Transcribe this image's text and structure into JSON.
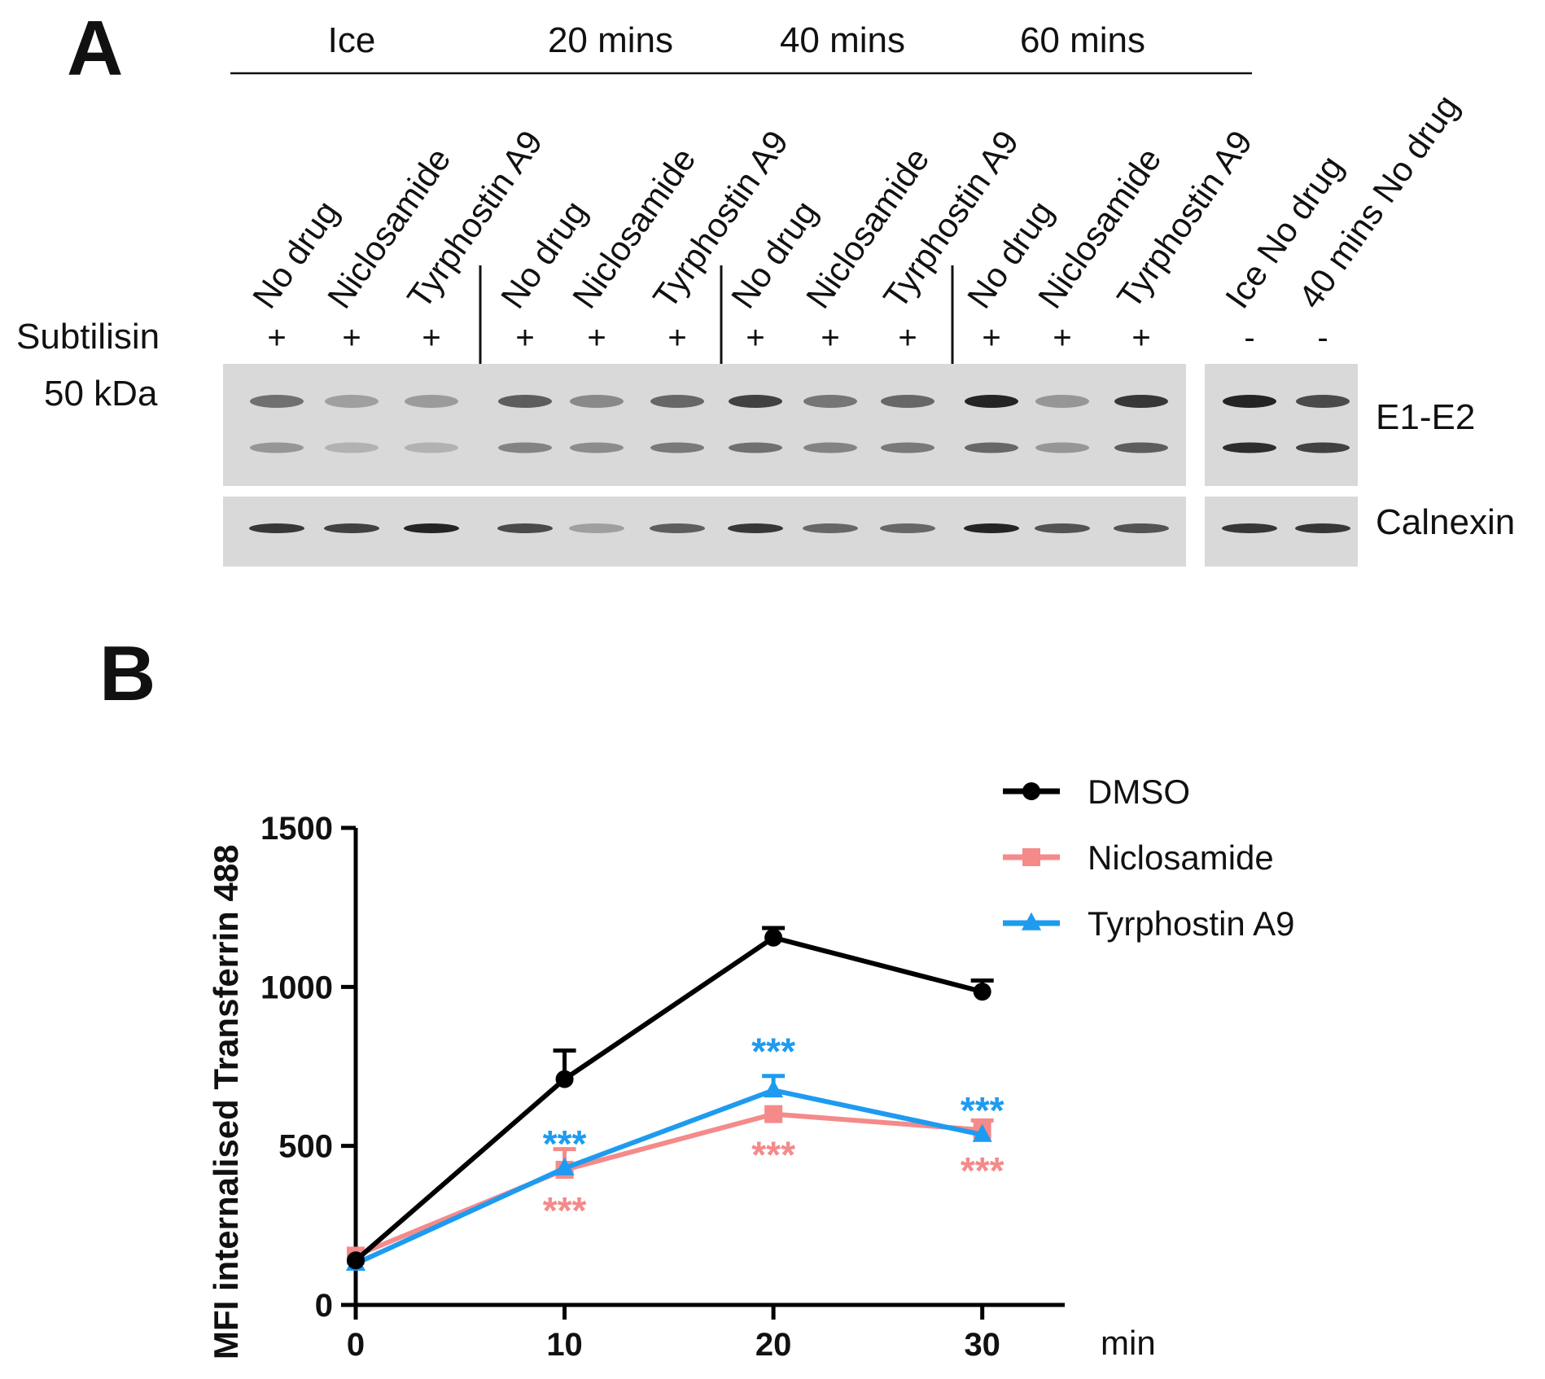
{
  "panel_a": {
    "label": "A",
    "time_groups": [
      "Ice",
      "20 mins",
      "40 mins",
      "60 mins"
    ],
    "lanes": [
      "No drug",
      "Niclosamide",
      "Tyrphostin A9",
      "No drug",
      "Niclosamide",
      "Tyrphostin A9",
      "No drug",
      "Niclosamide",
      "Tyrphostin A9",
      "No drug",
      "Niclosamide",
      "Tyrphostin A9",
      "Ice No drug",
      "40 mins No drug"
    ],
    "subtilisin_label": "Subtilisin",
    "subtilisin_signs": [
      "+",
      "+",
      "+",
      "+",
      "+",
      "+",
      "+",
      "+",
      "+",
      "+",
      "+",
      "+",
      "-",
      "-"
    ],
    "marker_label": "50 kDa",
    "band_labels": [
      "E1-E2",
      "Calnexin"
    ],
    "band_colors": {
      "blot_bg": "#d9d9d9",
      "band": "#1a1a1a"
    },
    "e1e2_upper_intensity": [
      0.55,
      0.3,
      0.32,
      0.65,
      0.42,
      0.6,
      0.8,
      0.52,
      0.6,
      0.95,
      0.35,
      0.85,
      0.95,
      0.75
    ],
    "e1e2_lower_intensity": [
      0.35,
      0.2,
      0.2,
      0.45,
      0.4,
      0.5,
      0.55,
      0.45,
      0.5,
      0.6,
      0.35,
      0.65,
      0.9,
      0.8
    ],
    "calnexin_intensity": [
      0.85,
      0.8,
      0.95,
      0.75,
      0.3,
      0.65,
      0.85,
      0.6,
      0.6,
      0.95,
      0.7,
      0.7,
      0.85,
      0.85
    ]
  },
  "panel_b": {
    "label": "B"
  },
  "chart_data": {
    "type": "line",
    "title": "",
    "xlabel": "min",
    "ylabel": "MFI internalised Transferrin 488",
    "x": [
      0,
      10,
      20,
      30
    ],
    "xlim": [
      0,
      32
    ],
    "ylim": [
      0,
      1500
    ],
    "yticks": [
      0,
      500,
      1000,
      1500
    ],
    "xticks": [
      0,
      10,
      20,
      30
    ],
    "grid": false,
    "legend_position": "top-right",
    "series": [
      {
        "name": "DMSO",
        "values": [
          140,
          710,
          1155,
          985
        ],
        "errors": [
          0,
          90,
          30,
          35
        ],
        "color": "#000000",
        "marker": "circle"
      },
      {
        "name": "Niclosamide",
        "values": [
          155,
          425,
          600,
          550
        ],
        "errors": [
          0,
          65,
          0,
          30
        ],
        "color": "#f48a8a",
        "marker": "square"
      },
      {
        "name": "Tyrphostin A9",
        "values": [
          130,
          430,
          675,
          535
        ],
        "errors": [
          0,
          0,
          45,
          0
        ],
        "color": "#1e9bf0",
        "marker": "triangle"
      }
    ],
    "annotations": [
      {
        "text": "***",
        "x": 10,
        "series": "Tyrphostin A9",
        "position": "above"
      },
      {
        "text": "***",
        "x": 10,
        "series": "Niclosamide",
        "position": "below"
      },
      {
        "text": "***",
        "x": 20,
        "series": "Tyrphostin A9",
        "position": "above"
      },
      {
        "text": "***",
        "x": 20,
        "series": "Niclosamide",
        "position": "below"
      },
      {
        "text": "***",
        "x": 30,
        "series": "Tyrphostin A9",
        "position": "above"
      },
      {
        "text": "***",
        "x": 30,
        "series": "Niclosamide",
        "position": "below"
      }
    ]
  }
}
